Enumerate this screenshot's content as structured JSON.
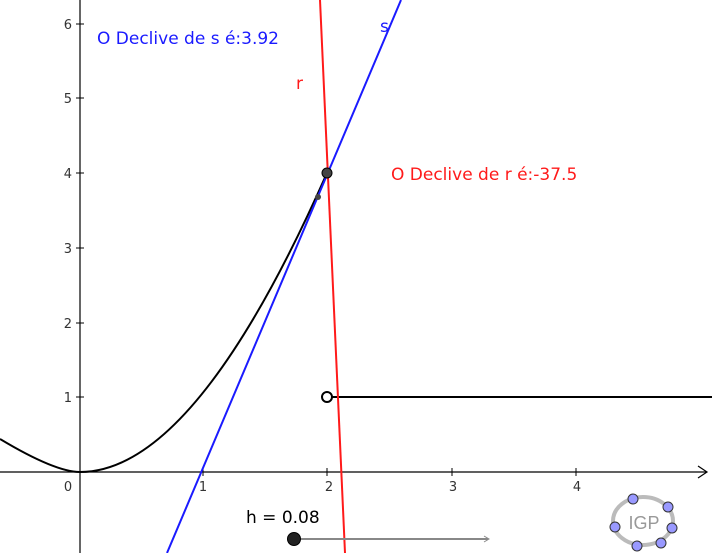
{
  "colors": {
    "line_s": "#1a1aff",
    "line_r": "#ff1a1a",
    "curve": "#000000",
    "axis": "#000000",
    "slider_track": "#888888"
  },
  "texts": {
    "slope_s": "O Declive de s é:3.92",
    "slope_r": "O Declive de r é:-37.5",
    "label_s": "s",
    "label_r": "r"
  },
  "axes": {
    "x_ticks": [
      "0",
      "1",
      "2",
      "3",
      "4"
    ],
    "y_ticks": [
      "1",
      "2",
      "3",
      "4",
      "5",
      "6"
    ]
  },
  "slider": {
    "label": "h = 0.08",
    "value": 0.08
  },
  "logo": {
    "text": "IGP",
    "icon": "geogebra-logo-icon"
  }
}
